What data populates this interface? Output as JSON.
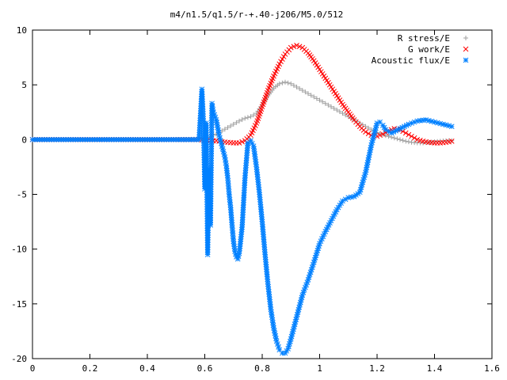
{
  "chart_data": {
    "type": "scatter",
    "title": "m4/n1.5/q1.5/r-+.40-j206/M5.0/512",
    "xlabel": "",
    "ylabel": "",
    "xlim": [
      0,
      1.6
    ],
    "ylim": [
      -20,
      10
    ],
    "xticks": [
      0,
      0.2,
      0.4,
      0.6,
      0.8,
      1,
      1.2,
      1.4,
      1.6
    ],
    "xtick_labels": [
      "0",
      "0.2",
      "0.4",
      "0.6",
      "0.8",
      "1",
      "1.2",
      "1.4",
      "1.6"
    ],
    "yticks": [
      -20,
      -15,
      -10,
      -5,
      0,
      5,
      10
    ],
    "ytick_labels": [
      "-20",
      "-15",
      "-10",
      "-5",
      "0",
      "5",
      "10"
    ],
    "grid": false,
    "legend_position": "top-right",
    "series": [
      {
        "name": "R stress/E",
        "marker": "+",
        "color": "#a0a0a0",
        "x": [
          0.0,
          0.1,
          0.2,
          0.3,
          0.4,
          0.5,
          0.58,
          0.6,
          0.62,
          0.64,
          0.66,
          0.68,
          0.7,
          0.72,
          0.74,
          0.76,
          0.78,
          0.8,
          0.82,
          0.84,
          0.86,
          0.88,
          0.9,
          0.92,
          0.94,
          0.96,
          0.98,
          1.0,
          1.02,
          1.04,
          1.06,
          1.08,
          1.1,
          1.12,
          1.14,
          1.16,
          1.18,
          1.2,
          1.22,
          1.24,
          1.26,
          1.28,
          1.3,
          1.32,
          1.34,
          1.36,
          1.38,
          1.4,
          1.42,
          1.44,
          1.46
        ],
        "y": [
          0,
          0,
          0,
          0,
          0,
          0,
          0.05,
          0.1,
          0.3,
          0.5,
          0.8,
          1.1,
          1.4,
          1.7,
          1.95,
          2.1,
          2.4,
          3.2,
          4.0,
          4.7,
          5.1,
          5.25,
          5.1,
          4.8,
          4.5,
          4.2,
          3.9,
          3.6,
          3.3,
          3.0,
          2.7,
          2.4,
          2.1,
          1.8,
          1.5,
          1.2,
          0.9,
          0.65,
          0.45,
          0.3,
          0.15,
          0.0,
          -0.15,
          -0.25,
          -0.3,
          -0.3,
          -0.25,
          -0.2,
          -0.15,
          -0.1,
          -0.1
        ]
      },
      {
        "name": "G work/E",
        "marker": "x",
        "color": "#ff0000",
        "x": [
          0.0,
          0.1,
          0.2,
          0.3,
          0.4,
          0.5,
          0.58,
          0.6,
          0.62,
          0.64,
          0.66,
          0.68,
          0.7,
          0.72,
          0.74,
          0.76,
          0.78,
          0.8,
          0.82,
          0.84,
          0.86,
          0.88,
          0.9,
          0.92,
          0.94,
          0.96,
          0.98,
          1.0,
          1.02,
          1.04,
          1.06,
          1.08,
          1.1,
          1.12,
          1.14,
          1.16,
          1.18,
          1.2,
          1.22,
          1.24,
          1.26,
          1.28,
          1.3,
          1.32,
          1.34,
          1.36,
          1.38,
          1.4,
          1.42,
          1.44,
          1.46
        ],
        "y": [
          0,
          0,
          0,
          0,
          0,
          0,
          0,
          -0.05,
          -0.1,
          -0.1,
          -0.2,
          -0.25,
          -0.3,
          -0.3,
          -0.1,
          0.4,
          1.5,
          3.0,
          4.5,
          5.8,
          6.9,
          7.8,
          8.4,
          8.6,
          8.4,
          7.9,
          7.2,
          6.4,
          5.6,
          4.8,
          4.0,
          3.2,
          2.5,
          1.8,
          1.2,
          0.7,
          0.4,
          0.3,
          0.5,
          0.8,
          1.0,
          0.9,
          0.6,
          0.3,
          0.0,
          -0.15,
          -0.25,
          -0.3,
          -0.3,
          -0.25,
          -0.15
        ]
      },
      {
        "name": "Acoustic flux/E",
        "marker": "*",
        "color": "#0080ff",
        "x": [
          0.0,
          0.1,
          0.2,
          0.3,
          0.4,
          0.5,
          0.58,
          0.59,
          0.595,
          0.6,
          0.605,
          0.61,
          0.615,
          0.62,
          0.625,
          0.63,
          0.64,
          0.65,
          0.66,
          0.67,
          0.675,
          0.68,
          0.685,
          0.69,
          0.695,
          0.7,
          0.705,
          0.71,
          0.715,
          0.72,
          0.73,
          0.74,
          0.75,
          0.76,
          0.77,
          0.78,
          0.79,
          0.8,
          0.81,
          0.82,
          0.83,
          0.84,
          0.85,
          0.86,
          0.87,
          0.88,
          0.89,
          0.9,
          0.92,
          0.94,
          0.96,
          0.98,
          1.0,
          1.02,
          1.04,
          1.06,
          1.08,
          1.1,
          1.12,
          1.14,
          1.16,
          1.18,
          1.2,
          1.21,
          1.22,
          1.23,
          1.25,
          1.28,
          1.31,
          1.34,
          1.37,
          1.4,
          1.43,
          1.46
        ],
        "y": [
          0,
          0,
          0,
          0,
          0,
          0,
          0,
          4.6,
          1.9,
          -4.5,
          1.5,
          -10.5,
          -2.7,
          -7.8,
          3.3,
          2.5,
          1.8,
          0.4,
          -0.6,
          -1.6,
          -2.4,
          -3.5,
          -5.0,
          -6.2,
          -7.8,
          -9.3,
          -10.2,
          -10.7,
          -10.9,
          -10.4,
          -8.0,
          -3.5,
          -0.3,
          -0.1,
          -0.6,
          -2.5,
          -4.8,
          -7.5,
          -10.5,
          -13.2,
          -15.5,
          -17.2,
          -18.4,
          -19.2,
          -19.5,
          -19.5,
          -19.1,
          -18.2,
          -16.2,
          -14.2,
          -12.8,
          -11.2,
          -9.5,
          -8.4,
          -7.4,
          -6.4,
          -5.6,
          -5.3,
          -5.2,
          -4.8,
          -3.0,
          -0.5,
          1.5,
          1.6,
          1.3,
          0.9,
          0.6,
          1.0,
          1.4,
          1.7,
          1.8,
          1.6,
          1.4,
          1.2
        ]
      }
    ]
  }
}
